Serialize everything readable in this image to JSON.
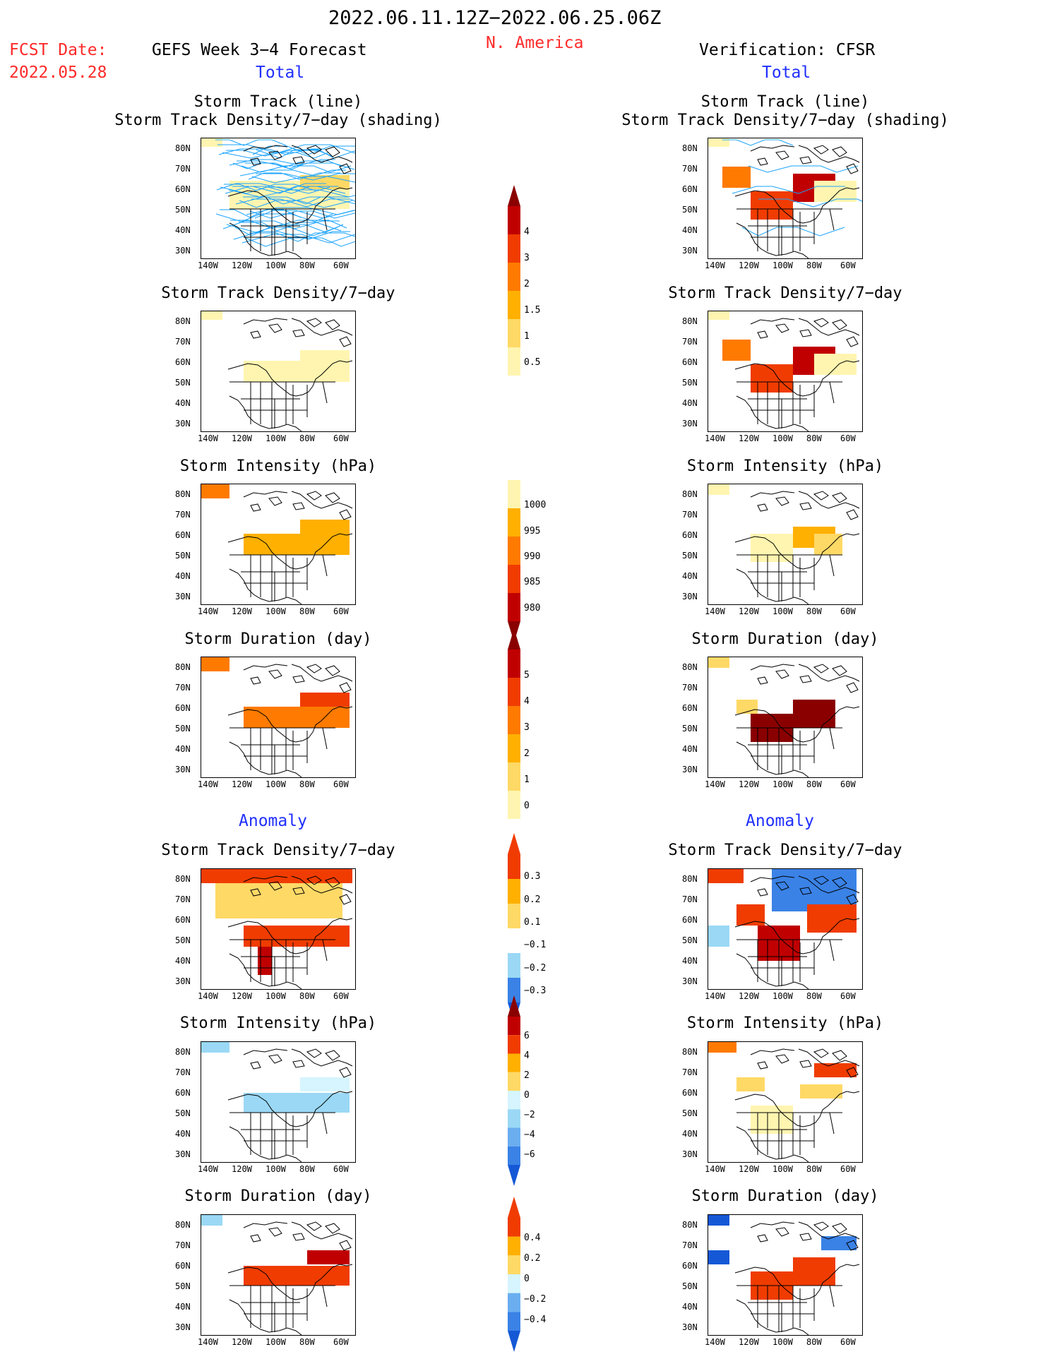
{
  "header": {
    "period": "2022.06.11.12Z−2022.06.25.06Z",
    "region": "N. America",
    "fcst_label": "FCST Date:",
    "fcst_date": "2022.05.28",
    "left_title": "GEFS Week 3−4 Forecast",
    "right_title": "Verification: CFSR",
    "total_label": "Total",
    "anomaly_label": "Anomaly"
  },
  "axes": {
    "lat_labels": [
      "80N",
      "70N",
      "60N",
      "50N",
      "40N",
      "30N"
    ],
    "lon_labels": [
      "140W",
      "120W",
      "100W",
      "80W",
      "60W"
    ]
  },
  "panels": {
    "track_title_1": "Storm Track (line)",
    "track_title_2": "Storm Track Density/7−day (shading)",
    "density_title": "Storm Track Density/7−day",
    "intensity_title": "Storm Intensity (hPa)",
    "duration_title": "Storm Duration (day)"
  },
  "colorbars": {
    "density_total": [
      "4",
      "3",
      "2",
      "1.5",
      "1",
      "0.5"
    ],
    "intensity_total": [
      "1000",
      "995",
      "990",
      "985",
      "980"
    ],
    "duration_total": [
      "5",
      "4",
      "3",
      "2",
      "1",
      "0"
    ],
    "density_anom": [
      "0.3",
      "0.2",
      "0.1",
      "−0.1",
      "−0.2",
      "−0.3"
    ],
    "intensity_anom": [
      "6",
      "4",
      "2",
      "0",
      "−2",
      "−4",
      "−6"
    ],
    "duration_anom": [
      "0.4",
      "0.2",
      "0",
      "−0.2",
      "−0.4"
    ]
  },
  "colors": {
    "title_red": "#ff2a2a",
    "title_blue": "#1f2fff",
    "track_line": "#1aa3ff",
    "pos_scale": [
      "#fff5b0",
      "#ffd966",
      "#ffb000",
      "#ff7a00",
      "#f03c00",
      "#c00000",
      "#8a0000"
    ],
    "neg_scale": [
      "#d6f5ff",
      "#9ad8f5",
      "#6aaef0",
      "#3a82e6",
      "#1558d6"
    ]
  }
}
